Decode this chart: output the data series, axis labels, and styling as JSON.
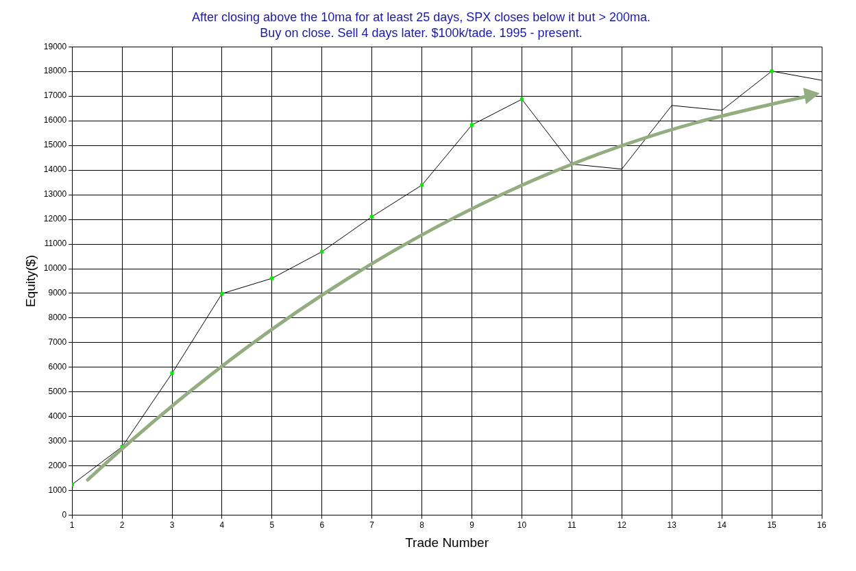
{
  "chart_data": {
    "type": "line",
    "title": "After closing above the 10ma for at least 25 days, SPX closes below it but > 200ma.",
    "subtitle": "Buy on close. Sell 4 days later. $100k/tade. 1995 - present.",
    "xlabel": "Trade Number",
    "ylabel": "Equity($)",
    "x": [
      1,
      2,
      3,
      4,
      5,
      6,
      7,
      8,
      9,
      10,
      11,
      12,
      13,
      14,
      15,
      16
    ],
    "series": [
      {
        "color": "#000000",
        "values": [
          1250,
          2780,
          5760,
          8990,
          9610,
          10690,
          12110,
          13390,
          15830,
          16870,
          14240,
          14040,
          16620,
          16420,
          18010,
          17640
        ],
        "colors": [
          "#00ee00",
          "#00ee00",
          "#00ee00",
          "#00ee00",
          "#00ee00",
          "#00ee00",
          "#00ee00",
          "#00ee00",
          "#00ee00",
          "#00ee00",
          null,
          null,
          null,
          null,
          "#00ee00",
          null
        ]
      }
    ],
    "xlim": [
      1,
      16
    ],
    "xticks": [
      1,
      2,
      3,
      4,
      5,
      6,
      7,
      8,
      9,
      10,
      11,
      12,
      13,
      14,
      15,
      16
    ],
    "ylim": [
      0,
      19000
    ],
    "yticks": [
      0,
      1000,
      2000,
      3000,
      4000,
      5000,
      6000,
      7000,
      8000,
      9000,
      10000,
      11000,
      12000,
      13000,
      14000,
      15000,
      16000,
      17000,
      18000,
      19000
    ],
    "grid": true,
    "legend": false,
    "marker": "square",
    "line_style": "solid"
  }
}
